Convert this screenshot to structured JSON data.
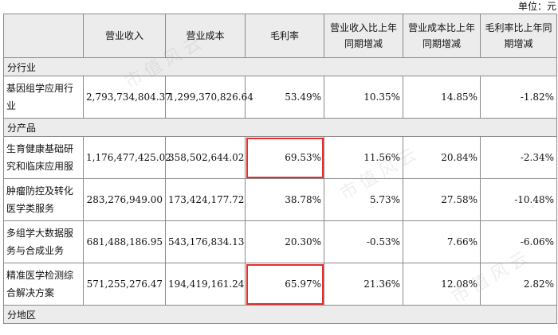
{
  "unit_label": "单位：元",
  "headers": [
    "",
    "营业收入",
    "营业成本",
    "毛利率",
    "营业收入比上年同期增减",
    "营业成本比上年同期增减",
    "毛利率比上年同期增减"
  ],
  "sections": {
    "industry": "分行业",
    "product": "分产品",
    "region": "分地区"
  },
  "industry_rows": [
    {
      "name": "基因组学应用行业",
      "revenue": "2,793,734,804.37",
      "cost": "1,299,370,826.64",
      "margin": "53.49%",
      "rev_change": "10.35%",
      "cost_change": "14.85%",
      "margin_change": "-1.82%",
      "highlight": false
    }
  ],
  "product_rows": [
    {
      "name": "生育健康基础研究和临床应用服",
      "revenue": "1,176,477,425.02",
      "cost": "358,502,644.02",
      "margin": "69.53%",
      "rev_change": "11.56%",
      "cost_change": "20.84%",
      "margin_change": "-2.34%",
      "highlight": true
    },
    {
      "name": "肿瘤防控及转化医学类服务",
      "revenue": "283,276,949.00",
      "cost": "173,424,177.72",
      "margin": "38.78%",
      "rev_change": "5.73%",
      "cost_change": "27.58%",
      "margin_change": "-10.48%",
      "highlight": false
    },
    {
      "name": "多组学大数据服务与合成业务",
      "revenue": "681,488,186.95",
      "cost": "543,176,834.13",
      "margin": "20.30%",
      "rev_change": "-0.53%",
      "cost_change": "7.66%",
      "margin_change": "-6.06%",
      "highlight": false
    },
    {
      "name": "精准医学检测综合解决方案",
      "revenue": "571,255,276.47",
      "cost": "194,419,161.24",
      "margin": "65.97%",
      "rev_change": "21.36%",
      "cost_change": "12.08%",
      "margin_change": "2.82%",
      "highlight": true
    }
  ],
  "watermark": "市值风云"
}
